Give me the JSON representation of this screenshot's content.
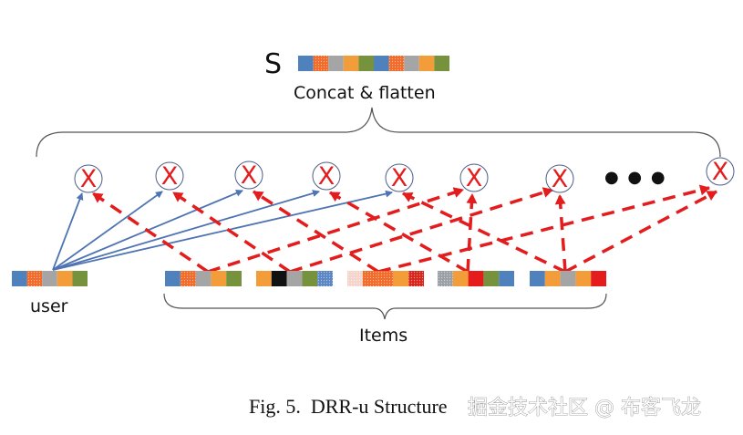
{
  "labels": {
    "s": "S",
    "concat": "Concat & flatten",
    "user": "user",
    "items": "Items",
    "ellipsis": "● ● ●",
    "caption": "Fig. 5.  DRR-u Structure",
    "watermark": "掘金技术社区 @ 布客飞龙"
  },
  "colors": {
    "blue": "#4f81bd",
    "orange_dotted": "#f26b2a",
    "gray": "#a5a5a5",
    "orange": "#f39c3a",
    "green": "#76923c",
    "black": "#111111",
    "red": "#e41c1c",
    "red_dotted": "#d9261c",
    "pink_dotted": "#f4d5cc",
    "blue_dotted": "#5b87c5",
    "gray_dotted": "#9aa0a6",
    "arrow_blue": "#4f74b3",
    "arrow_red": "#e31d1d"
  },
  "vectors": {
    "s": [
      "blue",
      "orange_dotted",
      "gray",
      "orange",
      "green",
      "blue",
      "orange_dotted",
      "gray",
      "orange",
      "green"
    ],
    "user": [
      "blue",
      "orange_dotted",
      "gray",
      "orange",
      "green"
    ],
    "items": [
      [
        "blue",
        "orange_dotted",
        "gray",
        "orange",
        "green"
      ],
      [
        "orange",
        "black",
        "gray",
        "green",
        "blue_dotted"
      ],
      [
        "pink_dotted",
        "orange_dotted",
        "orange_dotted",
        "orange",
        "red_dotted"
      ],
      [
        "gray_dotted",
        "orange",
        "red",
        "green",
        "blue"
      ],
      [
        "blue",
        "orange",
        "gray",
        "orange",
        "red"
      ]
    ]
  },
  "interaction_nodes": {
    "symbol": "X",
    "count_shown": 8
  }
}
